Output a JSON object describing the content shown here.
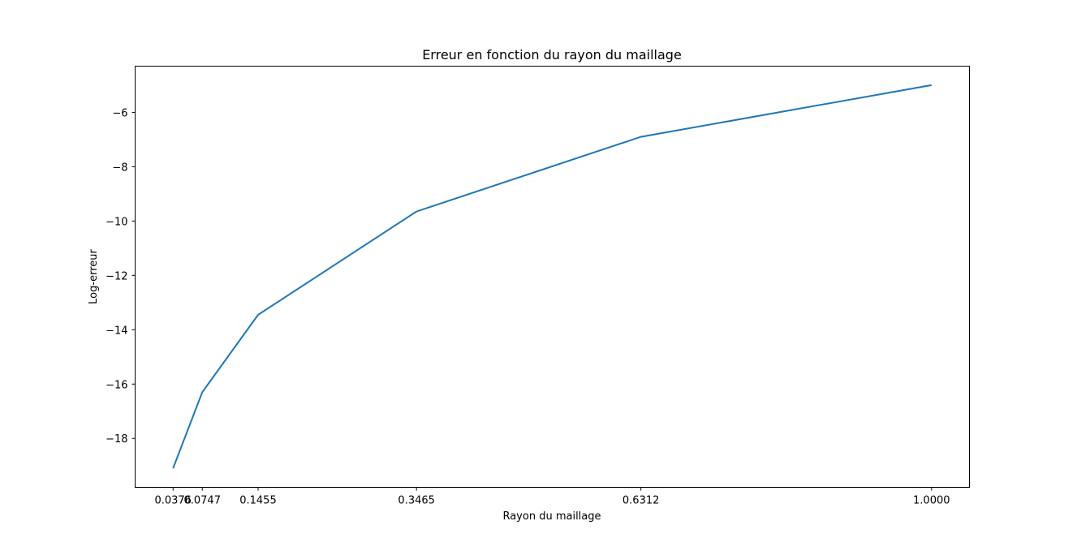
{
  "chart_data": {
    "type": "line",
    "title": "Erreur en fonction du rayon du maillage",
    "xlabel": "Rayon du maillage",
    "ylabel": "Log-erreur",
    "x": [
      0.0376,
      0.0747,
      0.1455,
      0.3465,
      0.6312,
      1.0
    ],
    "xtick_labels": [
      "0.0376",
      "0.0747",
      "0.1455",
      "0.3465",
      "0.6312",
      "1.0000"
    ],
    "yticks": [
      -18,
      -16,
      -14,
      -12,
      -10,
      -8,
      -6
    ],
    "ytick_labels": [
      "−18",
      "−16",
      "−14",
      "−12",
      "−10",
      "−8",
      "−6"
    ],
    "series": [
      {
        "values": [
          -19.1,
          -16.3,
          -13.45,
          -9.65,
          -6.9,
          -5.0
        ],
        "color": "#1f77b4"
      }
    ],
    "xlim": [
      -0.0105,
      1.0481
    ],
    "ylim": [
      -19.8,
      -4.3
    ],
    "grid": false
  }
}
